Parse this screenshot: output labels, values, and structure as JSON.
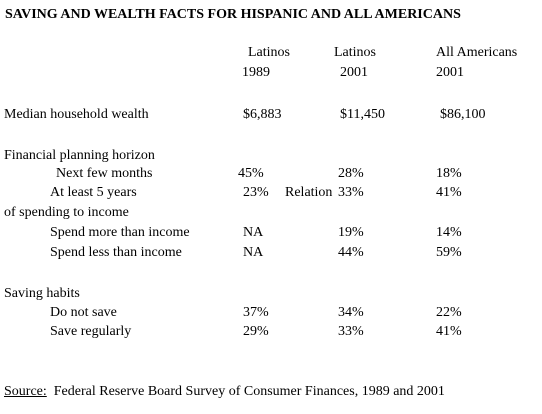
{
  "title": "SAVING AND WEALTH FACTS FOR HISPANIC AND ALL AMERICANS",
  "columns": [
    {
      "line1": "Latinos",
      "line2": "1989"
    },
    {
      "line1": "Latinos",
      "line2": "2001"
    },
    {
      "line1": "All Americans",
      "line2": "2001"
    }
  ],
  "rows": [
    {
      "label": "Median household wealth",
      "values": [
        "$6,883",
        "$11,450",
        "$86,100"
      ]
    },
    {
      "label": "Financial planning horizon"
    },
    {
      "label": "Next few months",
      "values": [
        "45%",
        "28%",
        "18%"
      ]
    },
    {
      "label": "At least 5 years",
      "values": [
        "23%",
        "33%",
        "41%"
      ],
      "note": "Relation"
    },
    {
      "label": "of spending to income"
    },
    {
      "label": "Spend more than income",
      "values": [
        "NA",
        "19%",
        "14%"
      ]
    },
    {
      "label": "Spend less than income",
      "values": [
        "NA",
        "44%",
        "59%"
      ]
    },
    {
      "label": "Saving habits"
    },
    {
      "label": "Do not save",
      "values": [
        "37%",
        "34%",
        "22%"
      ]
    },
    {
      "label": "Save regularly",
      "values": [
        "29%",
        "33%",
        "41%"
      ]
    }
  ],
  "source": {
    "label": "Source:",
    "text": "Federal Reserve Board Survey of Consumer Finances, 1989 and 2001"
  }
}
